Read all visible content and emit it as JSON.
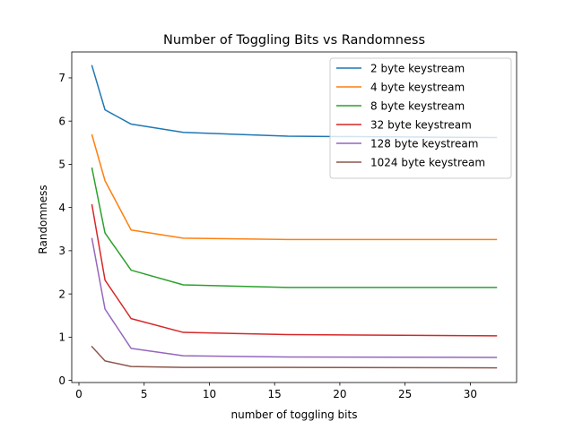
{
  "chart_data": {
    "type": "line",
    "title": "Number of Toggling Bits vs Randomness",
    "xlabel": "number of toggling bits",
    "ylabel": "Randomness",
    "xlim": [
      -0.55,
      33.55
    ],
    "ylim": [
      -0.05,
      7.6
    ],
    "xticks": [
      0,
      5,
      10,
      15,
      20,
      25,
      30
    ],
    "yticks": [
      0,
      1,
      2,
      3,
      4,
      5,
      6,
      7
    ],
    "grid": false,
    "legend_position": "upper right",
    "x": [
      1,
      2,
      4,
      8,
      16,
      32
    ],
    "series": [
      {
        "name": "2 byte keystream",
        "color": "#1f77b4",
        "values": [
          7.28,
          6.26,
          5.93,
          5.74,
          5.65,
          5.62
        ]
      },
      {
        "name": "4 byte keystream",
        "color": "#ff7f0e",
        "values": [
          5.68,
          4.62,
          3.48,
          3.29,
          3.26,
          3.26
        ]
      },
      {
        "name": "8 byte keystream",
        "color": "#2ca02c",
        "values": [
          4.91,
          3.41,
          2.55,
          2.21,
          2.15,
          2.15
        ]
      },
      {
        "name": "32 byte keystream",
        "color": "#d62728",
        "values": [
          4.06,
          2.32,
          1.43,
          1.11,
          1.06,
          1.03
        ]
      },
      {
        "name": "128 byte keystream",
        "color": "#9467bd",
        "values": [
          3.28,
          1.65,
          0.74,
          0.57,
          0.54,
          0.53
        ]
      },
      {
        "name": "1024 byte keystream",
        "color": "#8c564b",
        "values": [
          0.78,
          0.45,
          0.32,
          0.3,
          0.3,
          0.29
        ]
      }
    ]
  }
}
